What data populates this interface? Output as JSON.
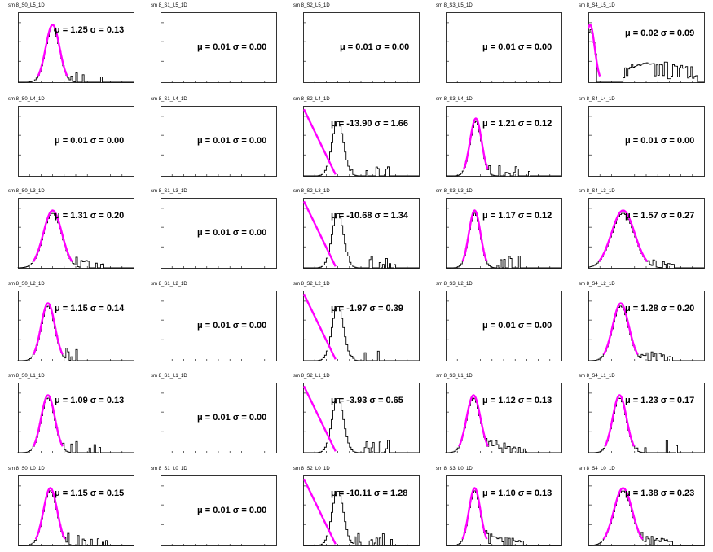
{
  "style": {
    "fit_color": "#ff00ff",
    "hist_color": "#000000"
  },
  "panels": [
    {
      "title": "sm 8_S0_L5_1D",
      "mu": "1.25",
      "sigma": "0.13",
      "shape": "peak",
      "peak": 0.3,
      "width": 0.06,
      "tail": "sparse"
    },
    {
      "title": "sm 8_S1_L5_1D",
      "mu": "0.01",
      "sigma": "0.00",
      "shape": "empty"
    },
    {
      "title": "sm 8_S2_L5_1D",
      "mu": "0.01",
      "sigma": "0.00",
      "shape": "empty"
    },
    {
      "title": "sm 8_S3_L5_1D",
      "mu": "0.01",
      "sigma": "0.00",
      "shape": "empty"
    },
    {
      "title": "sm 8_S4_L5_1D",
      "mu": "0.02",
      "sigma": "0.09",
      "shape": "edge",
      "peak": 0.02,
      "width": 0.04,
      "tail": "broad"
    },
    {
      "title": "sm 8_S0_L4_1D",
      "mu": "0.01",
      "sigma": "0.00",
      "shape": "empty"
    },
    {
      "title": "sm 8_S1_L4_1D",
      "mu": "0.01",
      "sigma": "0.00",
      "shape": "empty"
    },
    {
      "title": "sm 8_S2_L4_1D",
      "mu": "-13.90",
      "sigma": "1.66",
      "shape": "falling",
      "peak": 0.3,
      "width": 0.05,
      "tail": "sparse"
    },
    {
      "title": "sm 8_S3_L4_1D",
      "mu": "1.21",
      "sigma": "0.12",
      "shape": "peak",
      "peak": 0.26,
      "width": 0.05,
      "tail": "sparse"
    },
    {
      "title": "sm 8_S4_L4_1D",
      "mu": "0.01",
      "sigma": "0.00",
      "shape": "empty"
    },
    {
      "title": "sm 8_S0_L3_1D",
      "mu": "1.31",
      "sigma": "0.20",
      "shape": "peak",
      "peak": 0.3,
      "width": 0.08,
      "tail": "dense"
    },
    {
      "title": "sm 8_S1_L3_1D",
      "mu": "0.01",
      "sigma": "0.00",
      "shape": "empty"
    },
    {
      "title": "sm 8_S2_L3_1D",
      "mu": "-10.68",
      "sigma": "1.34",
      "shape": "falling",
      "peak": 0.3,
      "width": 0.05,
      "tail": "sparse"
    },
    {
      "title": "sm 8_S3_L3_1D",
      "mu": "1.17",
      "sigma": "0.12",
      "shape": "peak",
      "peak": 0.25,
      "width": 0.05,
      "tail": "sparse"
    },
    {
      "title": "sm 8_S4_L3_1D",
      "mu": "1.57",
      "sigma": "0.27",
      "shape": "peak",
      "peak": 0.3,
      "width": 0.1,
      "tail": "dense"
    },
    {
      "title": "sm 8_S0_L2_1D",
      "mu": "1.15",
      "sigma": "0.14",
      "shape": "peak",
      "peak": 0.26,
      "width": 0.06,
      "tail": "sparse"
    },
    {
      "title": "sm 8_S1_L2_1D",
      "mu": "0.01",
      "sigma": "0.00",
      "shape": "empty"
    },
    {
      "title": "sm 8_S2_L2_1D",
      "mu": "-1.97",
      "sigma": "0.39",
      "shape": "falling",
      "peak": 0.3,
      "width": 0.05,
      "tail": "sparse"
    },
    {
      "title": "sm 8_S3_L2_1D",
      "mu": "0.01",
      "sigma": "0.00",
      "shape": "empty"
    },
    {
      "title": "sm 8_S4_L2_1D",
      "mu": "1.28",
      "sigma": "0.20",
      "shape": "peak",
      "peak": 0.28,
      "width": 0.07,
      "tail": "dense"
    },
    {
      "title": "sm 8_S0_L1_1D",
      "mu": "1.09",
      "sigma": "0.13",
      "shape": "peak",
      "peak": 0.26,
      "width": 0.06,
      "tail": "sparse"
    },
    {
      "title": "sm 8_S1_L1_1D",
      "mu": "0.01",
      "sigma": "0.00",
      "shape": "empty"
    },
    {
      "title": "sm 8_S2_L1_1D",
      "mu": "-3.93",
      "sigma": "0.65",
      "shape": "falling",
      "peak": 0.3,
      "width": 0.05,
      "tail": "sparse"
    },
    {
      "title": "sm 8_S3_L1_1D",
      "mu": "1.12",
      "sigma": "0.13",
      "shape": "peak",
      "peak": 0.24,
      "width": 0.06,
      "tail": "dense"
    },
    {
      "title": "sm 8_S4_L1_1D",
      "mu": "1.23",
      "sigma": "0.17",
      "shape": "peak",
      "peak": 0.27,
      "width": 0.06,
      "tail": "sparse"
    },
    {
      "title": "sm 8_S0_L0_1D",
      "mu": "1.15",
      "sigma": "0.15",
      "shape": "peak",
      "peak": 0.28,
      "width": 0.06,
      "tail": "sparse"
    },
    {
      "title": "sm 8_S1_L0_1D",
      "mu": "0.01",
      "sigma": "0.00",
      "shape": "empty"
    },
    {
      "title": "sm 8_S2_L0_1D",
      "mu": "-10.11",
      "sigma": "1.28",
      "shape": "falling",
      "peak": 0.3,
      "width": 0.05,
      "tail": "sparse"
    },
    {
      "title": "sm 8_S3_L0_1D",
      "mu": "1.10",
      "sigma": "0.13",
      "shape": "peak",
      "peak": 0.25,
      "width": 0.05,
      "tail": "dense"
    },
    {
      "title": "sm 8_S4_L0_1D",
      "mu": "1.38",
      "sigma": "0.23",
      "shape": "peak",
      "peak": 0.3,
      "width": 0.08,
      "tail": "dense"
    }
  ]
}
